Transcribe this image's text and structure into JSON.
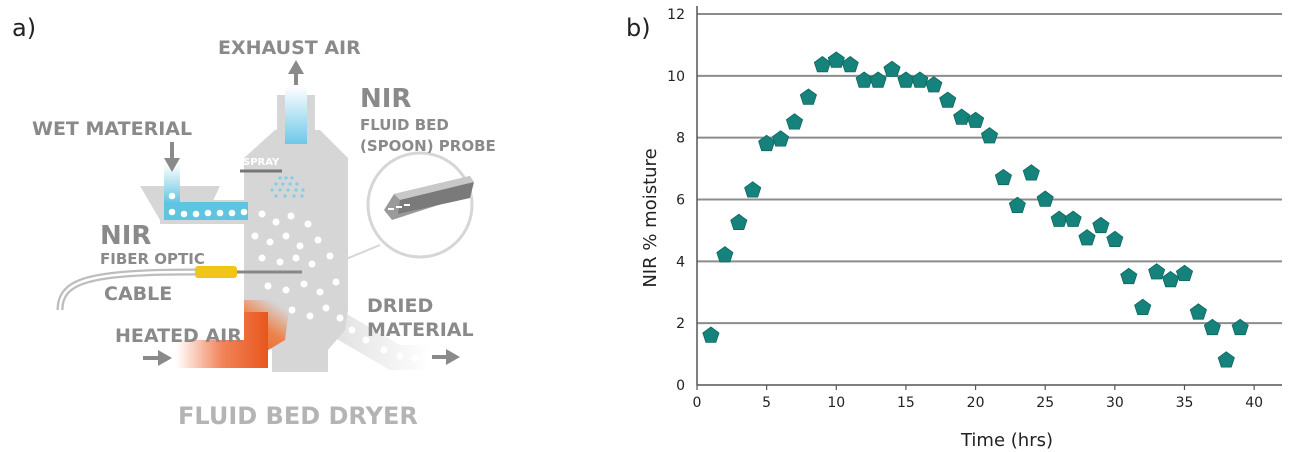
{
  "diagram": {
    "panel_label": "a)",
    "labels": {
      "exhaust_air": "EXHAUST AIR",
      "wet_material": "WET MATERIAL",
      "spray": "SPRAY",
      "nir_probe_title": "NIR",
      "probe_line1": "FLUID BED",
      "probe_line2": "(SPOON) PROBE",
      "nir_fiber_title": "NIR",
      "fiber_line1": "FIBER OPTIC",
      "fiber_line2": "CABLE",
      "heated_air": "HEATED AIR",
      "dried_line1": "DRIED",
      "dried_line2": "MATERIAL",
      "caption": "FLUID BED DRYER"
    },
    "colors": {
      "vessel": "#d6d6d6",
      "label": "#8a8a8a",
      "heated_air": "#e8561c",
      "wet": "#5fc4e0",
      "fiber": "#f0c419"
    }
  },
  "chart_data": {
    "type": "scatter",
    "panel_label": "b)",
    "xlabel": "Time (hrs)",
    "ylabel": "NIR % moisture",
    "xlim": [
      0,
      42
    ],
    "ylim": [
      0,
      12
    ],
    "xticks": [
      0,
      5,
      10,
      15,
      20,
      25,
      30,
      35,
      40
    ],
    "yticks": [
      0,
      2,
      4,
      6,
      8,
      10,
      12
    ],
    "grid": "horizontal",
    "marker": "pentagon",
    "marker_color": "#15837b",
    "points": [
      [
        1,
        1.6
      ],
      [
        2,
        4.2
      ],
      [
        3,
        5.25
      ],
      [
        4,
        6.3
      ],
      [
        5,
        7.8
      ],
      [
        6,
        7.95
      ],
      [
        7,
        8.5
      ],
      [
        8,
        9.3
      ],
      [
        9,
        10.35
      ],
      [
        10,
        10.5
      ],
      [
        11,
        10.35
      ],
      [
        12,
        9.85
      ],
      [
        13,
        9.85
      ],
      [
        14,
        10.2
      ],
      [
        15,
        9.85
      ],
      [
        16,
        9.85
      ],
      [
        17,
        9.7
      ],
      [
        18,
        9.2
      ],
      [
        19,
        8.65
      ],
      [
        20,
        8.55
      ],
      [
        21,
        8.05
      ],
      [
        22,
        6.7
      ],
      [
        23,
        5.8
      ],
      [
        24,
        6.85
      ],
      [
        25,
        6.0
      ],
      [
        26,
        5.35
      ],
      [
        27,
        5.35
      ],
      [
        28,
        4.75
      ],
      [
        29,
        5.15
      ],
      [
        30,
        4.7
      ],
      [
        31,
        3.5
      ],
      [
        32,
        2.5
      ],
      [
        33,
        3.65
      ],
      [
        34,
        3.4
      ],
      [
        35,
        3.6
      ],
      [
        36,
        2.35
      ],
      [
        37,
        1.85
      ],
      [
        38,
        0.8
      ],
      [
        39,
        1.85
      ]
    ]
  }
}
